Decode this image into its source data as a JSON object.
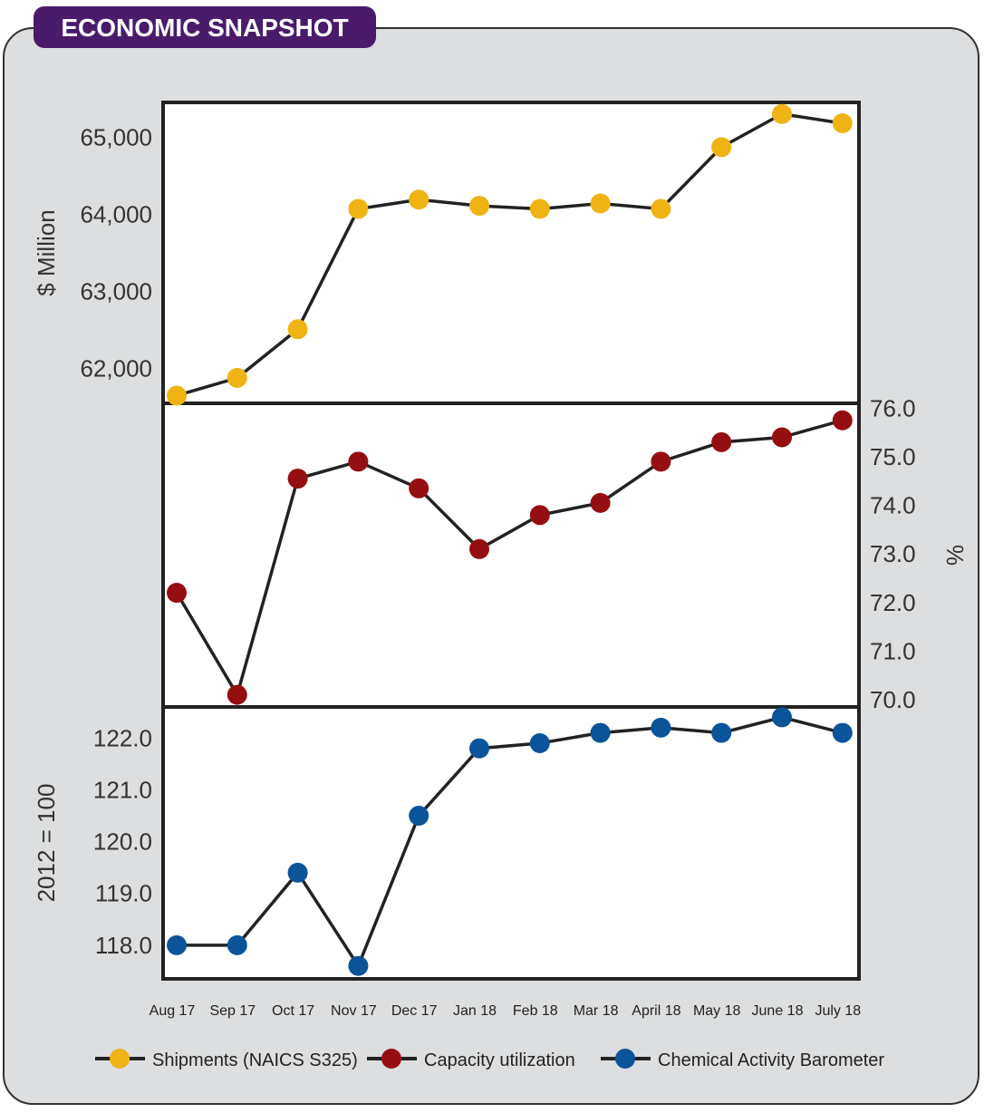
{
  "title": "ECONOMIC SNAPSHOT",
  "colors": {
    "purple": "#4a1a6b",
    "panel": "#dcdedf",
    "shipments": "#efb414",
    "capacity": "#950e12",
    "cab": "#0a5499",
    "line": "#222222"
  },
  "chart_data": [
    {
      "type": "line",
      "name": "Shipments (NAICS S325)",
      "ylabel": "$ Million",
      "y_axis_side": "left",
      "ylim": [
        61550,
        65450
      ],
      "yticks": [
        62000,
        63000,
        64000,
        65000
      ],
      "ytick_labels": [
        "62,000",
        "63,000",
        "64,000",
        "65,000"
      ],
      "x": [
        "Aug 17",
        "Sep 17",
        "Oct 17",
        "Nov 17",
        "Dec 17",
        "Jan 18",
        "Feb 18",
        "Mar 18",
        "April 18",
        "May 18",
        "June 18",
        "July 18"
      ],
      "values": [
        61650,
        61880,
        62510,
        64070,
        64190,
        64110,
        64070,
        64140,
        64070,
        64870,
        65300,
        65180
      ]
    },
    {
      "type": "line",
      "name": "Capacity utilization",
      "ylabel": "%",
      "y_axis_side": "right",
      "ylim": [
        69.85,
        76.1
      ],
      "yticks": [
        70,
        71,
        72,
        73,
        74,
        75,
        76
      ],
      "ytick_labels": [
        "70.0",
        "71.0",
        "72.0",
        "73.0",
        "74.0",
        "75.0",
        "76.0"
      ],
      "x": [
        "Aug 17",
        "Sep 17",
        "Oct 17",
        "Nov 17",
        "Dec 17",
        "Jan 18",
        "Feb 18",
        "Mar 18",
        "April 18",
        "May 18",
        "June 18",
        "July 18"
      ],
      "values": [
        72.2,
        70.1,
        74.55,
        74.9,
        74.35,
        73.1,
        73.8,
        74.05,
        74.9,
        75.3,
        75.4,
        75.75
      ]
    },
    {
      "type": "line",
      "name": "Chemical Activity Barometer",
      "ylabel": "2012 = 100",
      "y_axis_side": "left",
      "ylim": [
        117.35,
        122.6
      ],
      "yticks": [
        118,
        119,
        120,
        121,
        122
      ],
      "ytick_labels": [
        "118.0",
        "119.0",
        "120.0",
        "121.0",
        "122.0"
      ],
      "x": [
        "Aug 17",
        "Sep 17",
        "Oct 17",
        "Nov 17",
        "Dec 17",
        "Jan 18",
        "Feb 18",
        "Mar 18",
        "April 18",
        "May 18",
        "June 18",
        "July 18"
      ],
      "values": [
        118.0,
        118.0,
        119.4,
        117.6,
        120.5,
        121.8,
        121.9,
        122.1,
        122.2,
        122.1,
        122.4,
        122.1
      ]
    }
  ],
  "legend": {
    "placement": "bottom",
    "items": [
      "Shipments (NAICS S325)",
      "Capacity utilization",
      "Chemical Activity Barometer"
    ]
  }
}
